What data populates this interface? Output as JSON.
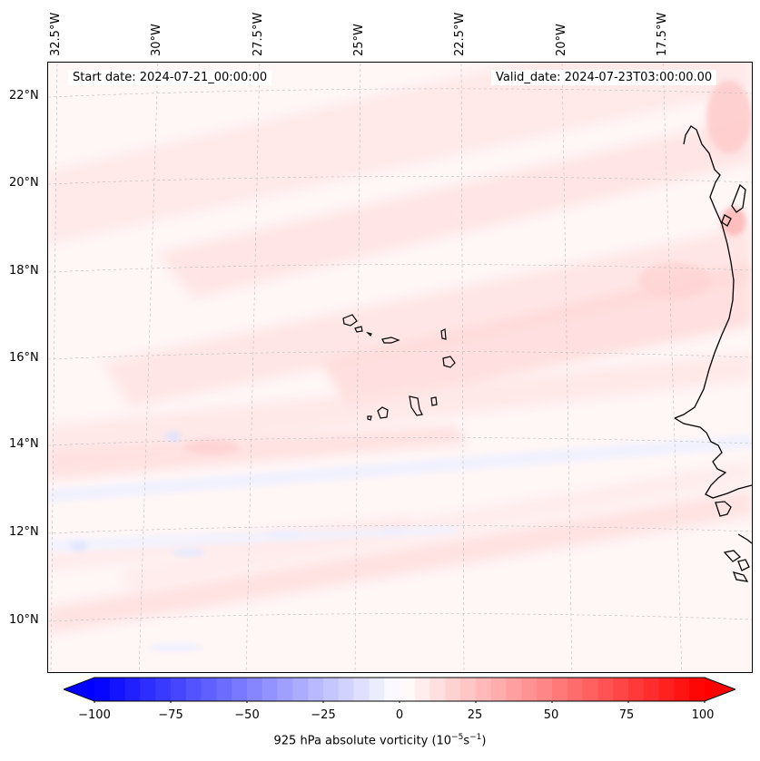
{
  "header": {
    "start_date": "Start date: 2024-07-21_00:00:00",
    "valid_date": "Valid_date: 2024-07-23T03:00:00.00"
  },
  "axes": {
    "longitude_labels": [
      "32.5°W",
      "30°W",
      "27.5°W",
      "25°W",
      "22.5°W",
      "20°W",
      "17.5°W"
    ],
    "latitude_labels": [
      "22°N",
      "20°N",
      "18°N",
      "16°N",
      "14°N",
      "12°N",
      "10°N"
    ]
  },
  "colorbar": {
    "label": "925 hPa absolute vorticity (10",
    "label_exp1": "−5",
    "label_mid": "s",
    "label_exp2": "−1",
    "label_end": ")",
    "ticks": [
      "−100",
      "−75",
      "−50",
      "−25",
      "0",
      "25",
      "50",
      "75",
      "100"
    ],
    "min": -100,
    "max": 100,
    "levels": 40,
    "color_low": "#0000ff",
    "color_mid": "#ffffff",
    "color_high": "#ff0000"
  },
  "map": {
    "region": "Cape Verde / West African coast",
    "features": [
      "cape-verde-islands",
      "west-africa-coastline"
    ]
  }
}
